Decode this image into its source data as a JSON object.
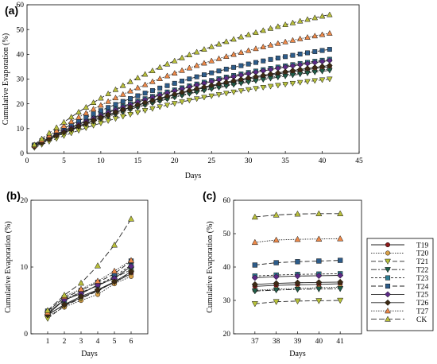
{
  "chart_data": [
    {
      "type": "line",
      "panel": "(a)",
      "xlabel": "Days",
      "ylabel": "Cumulative Evaporation (%)",
      "xlim": [
        0,
        45
      ],
      "ylim": [
        0,
        60
      ],
      "xticks": [
        0,
        5,
        10,
        15,
        20,
        25,
        30,
        35,
        40,
        45
      ],
      "yticks": [
        0,
        10,
        20,
        30,
        40,
        50,
        60
      ],
      "grid": false,
      "x_range": [
        1,
        41
      ],
      "series_end": [
        {
          "name": "T19",
          "start": 2.9,
          "end": 35.0
        },
        {
          "name": "T20",
          "start": 2.6,
          "end": 34.0
        },
        {
          "name": "T21",
          "start": 2.3,
          "end": 30.0
        },
        {
          "name": "T22",
          "start": 3.0,
          "end": 33.5
        },
        {
          "name": "T23",
          "start": 3.2,
          "end": 38.0
        },
        {
          "name": "T24",
          "start": 3.4,
          "end": 42.0
        },
        {
          "name": "T25",
          "start": 2.9,
          "end": 37.5
        },
        {
          "name": "T26",
          "start": 2.8,
          "end": 35.5
        },
        {
          "name": "T27",
          "start": 3.2,
          "end": 48.5
        },
        {
          "name": "CK",
          "start": 3.5,
          "end": 56.0
        }
      ]
    },
    {
      "type": "line",
      "panel": "(b)",
      "xlabel": "Days",
      "ylabel": "Cumulative Evaporation (%)",
      "xlim": [
        0,
        7
      ],
      "ylim": [
        0,
        20
      ],
      "xticks": [
        1,
        2,
        3,
        4,
        5,
        6
      ],
      "yticks": [
        0,
        10,
        20
      ],
      "grid": false,
      "x": [
        1,
        2,
        3,
        4,
        5,
        6
      ],
      "series": [
        {
          "name": "T19",
          "values": [
            2.9,
            4.3,
            5.4,
            6.5,
            7.7,
            9.0
          ]
        },
        {
          "name": "T20",
          "values": [
            2.6,
            4.0,
            5.0,
            5.9,
            7.5,
            8.6
          ]
        },
        {
          "name": "T21",
          "values": [
            2.3,
            4.2,
            5.3,
            6.4,
            7.8,
            9.2
          ]
        },
        {
          "name": "T22",
          "values": [
            3.0,
            5.2,
            6.2,
            7.2,
            8.4,
            9.6
          ]
        },
        {
          "name": "T23",
          "values": [
            3.2,
            5.0,
            6.1,
            7.3,
            8.6,
            10.3
          ]
        },
        {
          "name": "T24",
          "values": [
            3.4,
            5.4,
            6.5,
            7.7,
            9.0,
            10.9
          ]
        },
        {
          "name": "T25",
          "values": [
            2.9,
            5.1,
            6.0,
            7.3,
            8.3,
            10.1
          ]
        },
        {
          "name": "T26",
          "values": [
            2.8,
            4.4,
            5.6,
            6.6,
            7.8,
            9.3
          ]
        },
        {
          "name": "T27",
          "values": [
            3.2,
            5.6,
            6.7,
            7.9,
            9.4,
            11.0
          ]
        },
        {
          "name": "CK",
          "values": [
            3.5,
            5.8,
            7.6,
            10.2,
            13.3,
            17.2
          ]
        }
      ]
    },
    {
      "type": "line",
      "panel": "(c)",
      "xlabel": "Days",
      "ylabel": "Cumulative Evaporation (%)",
      "xlim": [
        36,
        42
      ],
      "ylim": [
        20,
        60
      ],
      "xticks": [
        37,
        38,
        39,
        40,
        41
      ],
      "yticks": [
        20,
        30,
        40,
        50,
        60
      ],
      "grid": false,
      "x": [
        37,
        38,
        39,
        40,
        41
      ],
      "series": [
        {
          "name": "T19",
          "values": [
            34.2,
            34.5,
            34.7,
            34.8,
            35.0
          ]
        },
        {
          "name": "T20",
          "values": [
            33.0,
            33.4,
            33.6,
            33.8,
            34.0
          ]
        },
        {
          "name": "T21",
          "values": [
            29.0,
            29.6,
            29.8,
            29.9,
            30.0
          ]
        },
        {
          "name": "T22",
          "values": [
            32.8,
            33.1,
            33.3,
            33.4,
            33.5
          ]
        },
        {
          "name": "T23",
          "values": [
            37.3,
            37.6,
            37.8,
            37.9,
            38.0
          ]
        },
        {
          "name": "T24",
          "values": [
            40.6,
            41.3,
            41.6,
            41.8,
            42.0
          ]
        },
        {
          "name": "T25",
          "values": [
            36.8,
            37.1,
            37.3,
            37.4,
            37.5
          ]
        },
        {
          "name": "T26",
          "values": [
            34.8,
            35.1,
            35.3,
            35.4,
            35.5
          ]
        },
        {
          "name": "T27",
          "values": [
            47.4,
            48.1,
            48.3,
            48.4,
            48.5
          ]
        },
        {
          "name": "CK",
          "values": [
            55.0,
            55.6,
            55.9,
            56.0,
            56.0
          ]
        }
      ]
    }
  ],
  "series_styles": [
    {
      "name": "T19",
      "color": "#8b1a1a",
      "marker": "circle",
      "dash": ""
    },
    {
      "name": "T20",
      "color": "#d8a14a",
      "marker": "circle",
      "dash": "1.5,1.5"
    },
    {
      "name": "T21",
      "color": "#b8c23a",
      "marker": "triangle-down",
      "dash": "6,3"
    },
    {
      "name": "T22",
      "color": "#1f5e4a",
      "marker": "triangle-down",
      "dash": "7,2,2,2"
    },
    {
      "name": "T23",
      "color": "#2e7e94",
      "marker": "square",
      "dash": "3,2"
    },
    {
      "name": "T24",
      "color": "#2d5c8a",
      "marker": "square",
      "dash": "6,3"
    },
    {
      "name": "T25",
      "color": "#5b2a85",
      "marker": "diamond",
      "dash": ""
    },
    {
      "name": "T26",
      "color": "#3d2a14",
      "marker": "diamond",
      "dash": ""
    },
    {
      "name": "T27",
      "color": "#ee8a4a",
      "marker": "triangle-up",
      "dash": "1.5,1.5"
    },
    {
      "name": "CK",
      "color": "#b9bf3c",
      "marker": "triangle-up",
      "dash": "7,3"
    }
  ]
}
